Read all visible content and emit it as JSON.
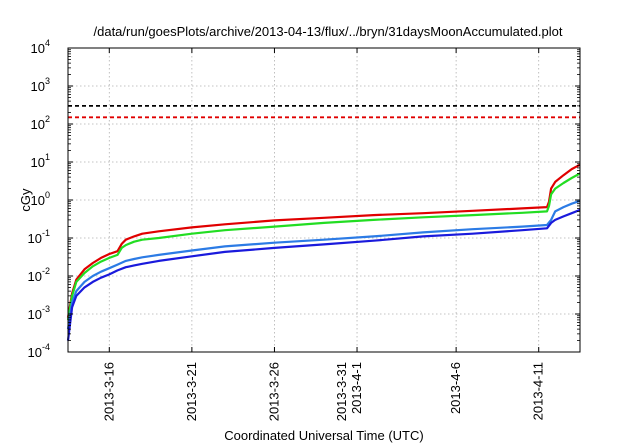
{
  "chart_data": {
    "type": "line",
    "title": "/data/run/goesPlots/archive/2013-04-13/flux/../bryn/31daysMoonAccumulated.plot",
    "xlabel": "Coordinated Universal Time (UTC)",
    "ylabel": "cGy",
    "xlim": [
      "2013-03-13T12:00",
      "2013-04-13T12:00"
    ],
    "ylim": [
      0.0001,
      10000
    ],
    "yscale": "log",
    "grid": true,
    "x_ticks": [
      {
        "date": "2013-03-16",
        "lines": [
          "2013-3-16"
        ]
      },
      {
        "date": "2013-03-21",
        "lines": [
          "2013-3-21"
        ]
      },
      {
        "date": "2013-03-26",
        "lines": [
          "2013-3-26"
        ]
      },
      {
        "date": "2013-03-31",
        "lines": [
          "2013-3-31",
          "2013-4-1"
        ]
      },
      {
        "date": "2013-04-06",
        "lines": [
          "2013-4-6"
        ]
      },
      {
        "date": "2013-04-11",
        "lines": [
          "2013-4-11"
        ]
      }
    ],
    "y_ticks": [
      {
        "value": 0.0001,
        "base": "10",
        "exp": "-4"
      },
      {
        "value": 0.001,
        "base": "10",
        "exp": "-3"
      },
      {
        "value": 0.01,
        "base": "10",
        "exp": "-2"
      },
      {
        "value": 0.1,
        "base": "10",
        "exp": "-1"
      },
      {
        "value": 1,
        "base": "10",
        "exp": "0"
      },
      {
        "value": 10,
        "base": "10",
        "exp": "1"
      },
      {
        "value": 100,
        "base": "10",
        "exp": "2"
      },
      {
        "value": 1000,
        "base": "10",
        "exp": "3"
      },
      {
        "value": 10000,
        "base": "10",
        "exp": "4"
      }
    ],
    "thresholds": [
      {
        "value": 300,
        "color": "#000000",
        "dash": true
      },
      {
        "value": 150,
        "color": "#e00000",
        "dash": true
      }
    ],
    "series": [
      {
        "color": "#e00000",
        "x": [
          "2013-03-13T12:00",
          "2013-03-13T18:00",
          "2013-03-14T00:00",
          "2013-03-14T12:00",
          "2013-03-15T00:00",
          "2013-03-15T12:00",
          "2013-03-16T00:00",
          "2013-03-16T12:00",
          "2013-03-16T18:00",
          "2013-03-17T00:00",
          "2013-03-17T12:00",
          "2013-03-18T00:00",
          "2013-03-19T00:00",
          "2013-03-21T00:00",
          "2013-03-23T00:00",
          "2013-03-26T00:00",
          "2013-03-29T00:00",
          "2013-04-01T00:00",
          "2013-04-04T00:00",
          "2013-04-07T00:00",
          "2013-04-10T00:00",
          "2013-04-11T12:00",
          "2013-04-11T15:00",
          "2013-04-11T18:00",
          "2013-04-12T00:00",
          "2013-04-12T12:00",
          "2013-04-13T00:00",
          "2013-04-13T12:00"
        ],
        "y": [
          0.0008,
          0.0035,
          0.008,
          0.015,
          0.022,
          0.03,
          0.038,
          0.045,
          0.07,
          0.09,
          0.11,
          0.13,
          0.15,
          0.19,
          0.23,
          0.29,
          0.34,
          0.4,
          0.45,
          0.52,
          0.6,
          0.65,
          0.9,
          2.0,
          3.0,
          4.5,
          6.5,
          8.5
        ]
      },
      {
        "color": "#22dd22",
        "x": [
          "2013-03-13T12:00",
          "2013-03-13T18:00",
          "2013-03-14T00:00",
          "2013-03-14T12:00",
          "2013-03-15T00:00",
          "2013-03-15T12:00",
          "2013-03-16T00:00",
          "2013-03-16T12:00",
          "2013-03-16T18:00",
          "2013-03-17T00:00",
          "2013-03-17T12:00",
          "2013-03-18T00:00",
          "2013-03-19T00:00",
          "2013-03-21T00:00",
          "2013-03-23T00:00",
          "2013-03-26T00:00",
          "2013-03-29T00:00",
          "2013-04-01T00:00",
          "2013-04-04T00:00",
          "2013-04-07T00:00",
          "2013-04-10T00:00",
          "2013-04-11T12:00",
          "2013-04-11T15:00",
          "2013-04-11T18:00",
          "2013-04-12T00:00",
          "2013-04-12T12:00",
          "2013-04-13T00:00",
          "2013-04-13T12:00"
        ],
        "y": [
          0.0007,
          0.003,
          0.007,
          0.012,
          0.018,
          0.024,
          0.03,
          0.036,
          0.055,
          0.065,
          0.08,
          0.09,
          0.1,
          0.13,
          0.16,
          0.2,
          0.25,
          0.3,
          0.35,
          0.4,
          0.46,
          0.5,
          0.7,
          1.4,
          2.0,
          2.8,
          3.8,
          5.0
        ]
      },
      {
        "color": "#2c7be5",
        "x": [
          "2013-03-13T12:00",
          "2013-03-13T18:00",
          "2013-03-14T00:00",
          "2013-03-14T12:00",
          "2013-03-15T00:00",
          "2013-03-15T12:00",
          "2013-03-16T00:00",
          "2013-03-16T12:00",
          "2013-03-17T00:00",
          "2013-03-17T12:00",
          "2013-03-18T00:00",
          "2013-03-19T00:00",
          "2013-03-21T00:00",
          "2013-03-23T00:00",
          "2013-03-26T00:00",
          "2013-03-29T00:00",
          "2013-04-01T00:00",
          "2013-04-04T00:00",
          "2013-04-07T00:00",
          "2013-04-10T00:00",
          "2013-04-11T12:00",
          "2013-04-11T18:00",
          "2013-04-12T00:00",
          "2013-04-12T12:00",
          "2013-04-13T00:00",
          "2013-04-13T12:00"
        ],
        "y": [
          0.0004,
          0.002,
          0.004,
          0.007,
          0.01,
          0.013,
          0.016,
          0.02,
          0.025,
          0.028,
          0.031,
          0.036,
          0.047,
          0.06,
          0.075,
          0.09,
          0.11,
          0.14,
          0.17,
          0.2,
          0.22,
          0.3,
          0.5,
          0.65,
          0.8,
          0.95
        ]
      },
      {
        "color": "#1a1adc",
        "x": [
          "2013-03-13T12:00",
          "2013-03-13T18:00",
          "2013-03-14T00:00",
          "2013-03-14T12:00",
          "2013-03-15T00:00",
          "2013-03-15T12:00",
          "2013-03-16T00:00",
          "2013-03-16T12:00",
          "2013-03-17T00:00",
          "2013-03-17T12:00",
          "2013-03-18T00:00",
          "2013-03-19T00:00",
          "2013-03-21T00:00",
          "2013-03-23T00:00",
          "2013-03-26T00:00",
          "2013-03-29T00:00",
          "2013-04-01T00:00",
          "2013-04-04T00:00",
          "2013-04-07T00:00",
          "2013-04-10T00:00",
          "2013-04-11T12:00",
          "2013-04-11T18:00",
          "2013-04-12T00:00",
          "2013-04-12T12:00",
          "2013-04-13T00:00",
          "2013-04-13T12:00"
        ],
        "y": [
          0.0002,
          0.0015,
          0.003,
          0.005,
          0.007,
          0.009,
          0.011,
          0.014,
          0.017,
          0.019,
          0.021,
          0.025,
          0.033,
          0.043,
          0.055,
          0.068,
          0.085,
          0.11,
          0.13,
          0.16,
          0.18,
          0.25,
          0.3,
          0.37,
          0.45,
          0.55
        ]
      }
    ]
  }
}
